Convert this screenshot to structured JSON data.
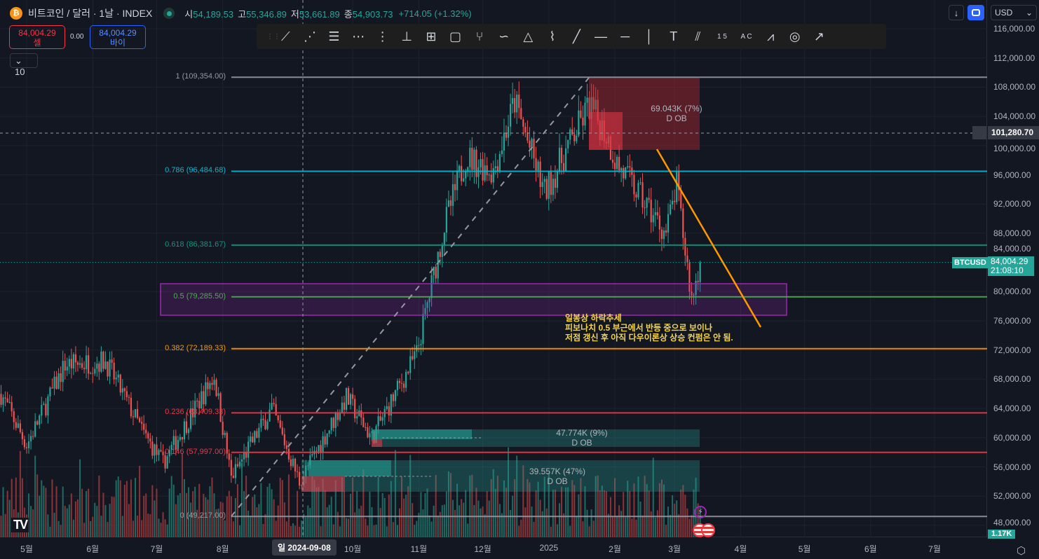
{
  "header": {
    "symbol_icon": "bitcoin-icon",
    "title": "비트코인 / 달러 · 1날 · INDEX",
    "status_color": "#26a69a",
    "ohlc": [
      {
        "k": "시",
        "v": "54,189.53"
      },
      {
        "k": "고",
        "v": "55,346.89"
      },
      {
        "k": "저",
        "v": "53,661.89"
      },
      {
        "k": "종",
        "v": "54,903.73"
      }
    ],
    "change": "+714.05 (+1.32%)"
  },
  "trade": {
    "sell_price": "84,004.29",
    "sell_label": "셀",
    "spread": "0.00",
    "buy_price": "84,004.29",
    "buy_label": "바이",
    "lots": "10"
  },
  "toolbar": {
    "items": [
      "trend-angle",
      "fib-fan",
      "parallel-lines",
      "fib-channel",
      "fib-timezone",
      "price-range",
      "date-price-range",
      "rectangle",
      "pitchfork",
      "curve",
      "triangle",
      "brush",
      "ray",
      "horizontal-ray",
      "horizontal-line",
      "vertical-line",
      "text",
      "parallel-channel",
      "elliott-wave-15",
      "abcd-pattern",
      "gann-fan",
      "circle",
      "arrow"
    ],
    "label_15": "1 5",
    "label_ac": "A C"
  },
  "top_right": {
    "currency": "USD"
  },
  "price_axis": {
    "ticks": [
      "116,000.00",
      "112,000.00",
      "108,000.00",
      "104,000.00",
      "100,000.00",
      "96,000.00",
      "92,000.00",
      "88,000.00",
      "84,000.00",
      "80,000.00",
      "76,000.00",
      "72,000.00",
      "68,000.00",
      "64,000.00",
      "60,000.00",
      "56,000.00",
      "52,000.00",
      "48,000.00"
    ],
    "crosshair_price": "101,280.70",
    "symbol_tag": "BTCUSD",
    "last_price": "84,004.29",
    "countdown": "21:08:10",
    "volume_tag": "1.17K"
  },
  "time_axis": {
    "ticks": [
      {
        "l": "5월",
        "d": 0
      },
      {
        "l": "6월",
        "d": 31
      },
      {
        "l": "7월",
        "d": 61
      },
      {
        "l": "8월",
        "d": 92
      },
      {
        "l": "10월",
        "d": 153
      },
      {
        "l": "11월",
        "d": 184
      },
      {
        "l": "12월",
        "d": 214
      },
      {
        "l": "2025",
        "d": 245
      },
      {
        "l": "2월",
        "d": 276
      },
      {
        "l": "3월",
        "d": 304
      },
      {
        "l": "4월",
        "d": 335
      },
      {
        "l": "5월",
        "d": 365
      },
      {
        "l": "6월",
        "d": 396
      },
      {
        "l": "7월",
        "d": 426
      }
    ],
    "crosshair_date": "일 2024-09-08"
  },
  "fib": [
    {
      "label": "1 (109,354.00)",
      "price": 109354,
      "color": "#9598a1"
    },
    {
      "label": "0.786 (96,484.68)",
      "price": 96484.68,
      "color": "#00bcd4"
    },
    {
      "label": "0.618 (86,381.67)",
      "price": 86381.67,
      "color": "#089981"
    },
    {
      "label": "0.5 (79,285.50)",
      "price": 79285.5,
      "color": "#4caf50"
    },
    {
      "label": "0.382 (72,189.33)",
      "price": 72189.33,
      "color": "#ff9800"
    },
    {
      "label": "0.236 (63,409.33)",
      "price": 63409.33,
      "color": "#f23645"
    },
    {
      "label": "0.146 (57,997.00)",
      "price": 57997,
      "color": "#f23645"
    },
    {
      "label": "0 (49,217.00)",
      "price": 49217,
      "color": "#9598a1"
    }
  ],
  "order_blocks": [
    {
      "value": "69.043K (7%)",
      "label": "D OB",
      "type": "bearish"
    },
    {
      "value": "47.774K (9%)",
      "label": "D OB",
      "type": "bullish"
    },
    {
      "value": "39.557K (47%)",
      "label": "D OB",
      "type": "bullish"
    }
  ],
  "note": {
    "lines": [
      "일봉상 하락추세",
      "피보나치 0.5 부근에서 반등 중으로 보이나",
      "저점 갱신 후 아직 다우이론상 상승 컨펌은 안 됨."
    ]
  },
  "colors": {
    "up": "#26a69a",
    "down": "#ef5350",
    "zone": "#9c27b0",
    "trend": "#ff9800"
  },
  "chart_data": {
    "type": "candlestick",
    "ylim": [
      47000,
      117000
    ],
    "anchor_closes": [
      [
        -12,
        66000
      ],
      [
        0,
        59000
      ],
      [
        18,
        70000
      ],
      [
        37,
        70500
      ],
      [
        55,
        60500
      ],
      [
        64,
        56500
      ],
      [
        88,
        68500
      ],
      [
        96,
        54500
      ],
      [
        115,
        64000
      ],
      [
        128,
        54000
      ],
      [
        150,
        65500
      ],
      [
        162,
        60000
      ],
      [
        183,
        71500
      ],
      [
        196,
        89000
      ],
      [
        206,
        98500
      ],
      [
        219,
        96500
      ],
      [
        229,
        106000
      ],
      [
        243,
        93500
      ],
      [
        264,
        105500
      ],
      [
        272,
        101500
      ],
      [
        277,
        97500
      ],
      [
        300,
        88000
      ],
      [
        305,
        94500
      ],
      [
        312,
        79000
      ],
      [
        316,
        84004
      ]
    ]
  }
}
